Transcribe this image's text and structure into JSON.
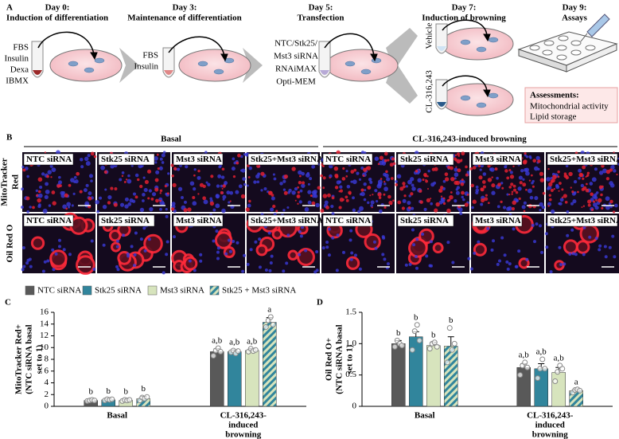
{
  "panel_labels": [
    "A",
    "B",
    "C",
    "D"
  ],
  "timeline": [
    {
      "day": "Day 0:",
      "step": "Induction of differentiation",
      "reagents": [
        "FBS",
        "Insulin",
        "Dexa",
        "IBMX"
      ]
    },
    {
      "day": "Day 3:",
      "step": "Maintenance of differentiation",
      "reagents": [
        "FBS",
        "Insulin"
      ]
    },
    {
      "day": "Day 5:",
      "step": "Transfection",
      "reagents": [
        "NTC/Stk25/",
        "Mst3 siRNA",
        "RNAiMAX",
        "Opti-MEM"
      ]
    },
    {
      "day": "Day 7:",
      "step": "Induction of browning",
      "reagents": [
        "Vehicle",
        "CL-316,243"
      ]
    },
    {
      "day": "Day 9:",
      "step": "Assays"
    }
  ],
  "assessments": {
    "title": "Assessments:",
    "items": [
      "Mitochondrial activity",
      "Lipid storage"
    ]
  },
  "micrographs": {
    "groups": [
      "Basal",
      "CL-316,243-induced browning"
    ],
    "rows": [
      [
        "MitoTracker",
        "Red"
      ],
      [
        "Oil Red O"
      ]
    ],
    "columns": [
      "NTC siRNA",
      "Stk25 siRNA",
      "Mst3 siRNA",
      "Stk25+Mst3 siRNA"
    ]
  },
  "chart_data": [
    {
      "type": "bar",
      "ylabel": [
        "MitoTracker Red+",
        "(NTC siRNA basal",
        "set to 1)"
      ],
      "categories": [
        [
          "Basal"
        ],
        [
          "CL-316,243-",
          "induced",
          "browning"
        ]
      ],
      "ylim": [
        0,
        16
      ],
      "yticks": [
        0,
        2,
        4,
        6,
        8,
        10,
        12,
        14,
        16
      ],
      "series": [
        {
          "name": "NTC siRNA",
          "color": "#595959",
          "values": [
            1.0,
            9.3
          ],
          "errors": [
            0.2,
            0.5
          ],
          "letters": [
            "b",
            "a,b"
          ],
          "points": [
            [
              0.9,
              1.0,
              1.1,
              1.0
            ],
            [
              8.6,
              9.5,
              9.9,
              9.3
            ]
          ]
        },
        {
          "name": "Stk25 siRNA",
          "color": "#31859c",
          "values": [
            1.1,
            9.3
          ],
          "errors": [
            0.2,
            0.3
          ],
          "letters": [
            "b",
            "a,b"
          ],
          "points": [
            [
              1.0,
              1.2,
              1.1,
              1.2
            ],
            [
              9.2,
              9.5,
              9.0,
              9.4
            ]
          ]
        },
        {
          "name": "Mst3 siRNA",
          "color": "#d7e4bd",
          "values": [
            1.0,
            9.5
          ],
          "errors": [
            0.2,
            0.3
          ],
          "letters": [
            "b",
            "a,b"
          ],
          "points": [
            [
              0.9,
              1.1,
              1.0,
              1.1
            ],
            [
              9.3,
              9.8,
              9.4,
              9.6
            ]
          ]
        },
        {
          "name": "Stk25 + Mst3 siRNA",
          "color": "#31859c",
          "hatch_color": "#d7e4bd",
          "values": [
            1.3,
            14.3
          ],
          "errors": [
            0.4,
            0.8
          ],
          "letters": [
            "b",
            "a"
          ],
          "points": [
            [
              1.0,
              1.5,
              1.3,
              1.6
            ],
            [
              13.5,
              14.6,
              15.2,
              13.9
            ]
          ]
        }
      ]
    },
    {
      "type": "bar",
      "ylabel": [
        "Oil Red O+",
        "(NTC siRNA basal",
        "set to 1)"
      ],
      "categories": [
        [
          "Basal"
        ],
        [
          "CL-316,243-",
          "induced",
          "browning"
        ]
      ],
      "ylim": [
        0,
        1.5
      ],
      "yticks": [
        0,
        0.5,
        {
          "value": 1,
          "label": "1.0"
        },
        1.5
      ],
      "series": [
        {
          "color": "#595959",
          "values": [
            1.0,
            0.62
          ],
          "errors": [
            0.05,
            0.06
          ],
          "letters": [
            "b",
            "a,b"
          ],
          "points": [
            [
              0.95,
              1.05,
              1.0,
              0.97
            ],
            [
              0.5,
              0.65,
              0.7,
              0.62
            ]
          ]
        },
        {
          "color": "#31859c",
          "values": [
            1.11,
            0.6
          ],
          "errors": [
            0.08,
            0.08
          ],
          "letters": [
            "b",
            "a,b"
          ],
          "points": [
            [
              0.9,
              1.2,
              1.3,
              1.05
            ],
            [
              0.45,
              0.6,
              0.75,
              0.6
            ]
          ]
        },
        {
          "color": "#d7e4bd",
          "values": [
            0.97,
            0.54
          ],
          "errors": [
            0.05,
            0.08
          ],
          "letters": [
            "b",
            "a,b"
          ],
          "points": [
            [
              0.92,
              1.0,
              1.02,
              0.95
            ],
            [
              0.4,
              0.55,
              0.65,
              0.6
            ]
          ]
        },
        {
          "color": "#31859c",
          "hatch_color": "#d7e4bd",
          "values": [
            0.96,
            0.25
          ],
          "errors": [
            0.15,
            0.02
          ],
          "letters": [
            "b",
            "a"
          ],
          "points": [
            [
              0.7,
              1.25,
              0.9,
              1.0
            ],
            [
              0.22,
              0.26,
              0.27,
              0.25
            ]
          ]
        }
      ]
    }
  ]
}
